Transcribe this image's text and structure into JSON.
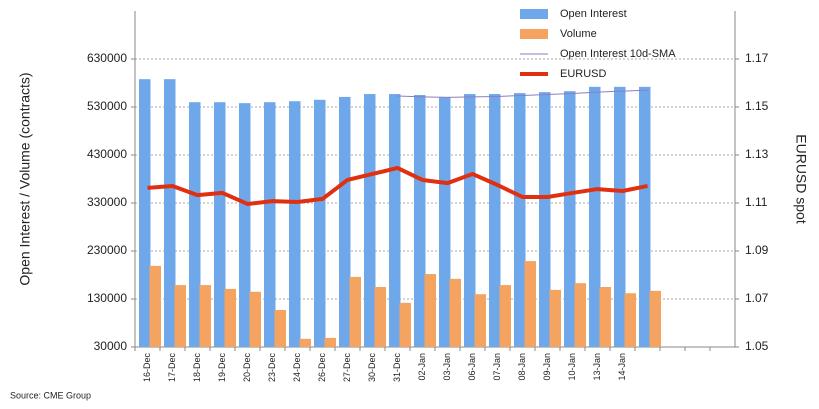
{
  "chart_data": {
    "type": "bar",
    "y_label": "Open Interest / Volume (contracts)",
    "y2_label": "EURUSD spot",
    "source": "Source: CME Group",
    "categories": [
      "16-Dec",
      "17-Dec",
      "18-Dec",
      "19-Dec",
      "20-Dec",
      "23-Dec",
      "24-Dec",
      "26-Dec",
      "27-Dec",
      "30-Dec",
      "31-Dec",
      "02-Jan",
      "03-Jan",
      "06-Jan",
      "07-Jan",
      "08-Jan",
      "09-Jan",
      "10-Jan",
      "13-Jan",
      "14-Jan",
      null,
      null,
      null,
      null
    ],
    "series": [
      {
        "name": "Open Interest",
        "type": "bar",
        "color": "#6fa8ea",
        "values": [
          588000,
          588000,
          540000,
          540000,
          538000,
          540000,
          542000,
          545000,
          551000,
          557000,
          557000,
          555000,
          551000,
          557000,
          557000,
          559000,
          561000,
          563000,
          572000,
          572000,
          572000,
          null,
          null,
          null
        ]
      },
      {
        "name": "Volume",
        "type": "bar",
        "color": "#f4a460",
        "values": [
          199000,
          159000,
          159000,
          151000,
          145000,
          107000,
          47000,
          49000,
          176000,
          155000,
          122000,
          182000,
          172000,
          140000,
          159000,
          209000,
          149000,
          163000,
          155000,
          142000,
          147000,
          null,
          null,
          null
        ]
      },
      {
        "name": "Open Interest 10d-SMA",
        "type": "line",
        "color": "#8a7fc0",
        "values": [
          null,
          null,
          null,
          null,
          null,
          null,
          null,
          null,
          null,
          null,
          553000,
          551000,
          550000,
          551000,
          552000,
          554000,
          556000,
          558000,
          561000,
          563000,
          565000,
          null,
          null,
          null
        ]
      },
      {
        "name": "EURUSD",
        "type": "line",
        "axis": "y2",
        "color": "#e03010",
        "values": [
          1.1163,
          1.1171,
          1.1133,
          1.1142,
          1.1096,
          1.1108,
          1.1104,
          1.1117,
          1.1196,
          1.1221,
          1.1246,
          1.1196,
          1.1183,
          1.1221,
          1.1175,
          1.1125,
          1.1125,
          1.1142,
          1.1158,
          1.115,
          1.1171,
          null,
          null,
          null
        ]
      }
    ],
    "ylim": [
      30000,
      730000
    ],
    "yticks": [
      30000,
      130000,
      230000,
      330000,
      430000,
      530000,
      630000
    ],
    "y2lim": [
      1.05,
      1.19
    ],
    "y2ticks": [
      1.05,
      1.07,
      1.09,
      1.11,
      1.13,
      1.15,
      1.17
    ],
    "grid": true
  }
}
